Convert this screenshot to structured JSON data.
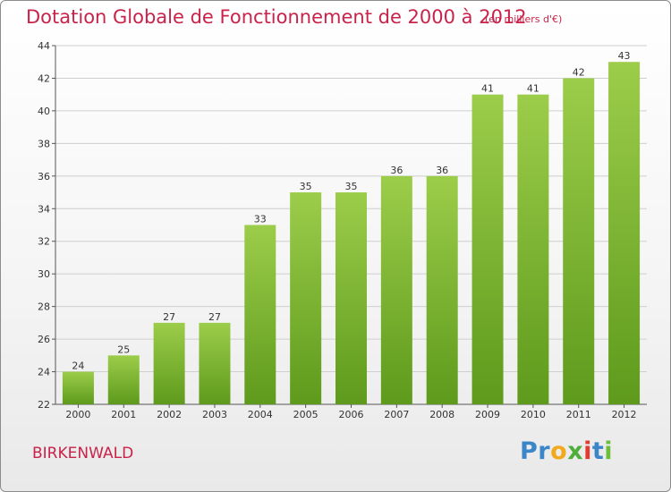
{
  "title": "Dotation Globale de Fonctionnement de 2000 à 2012",
  "subtitle": "(en milliers d'€)",
  "commune": "BIRKENWALD",
  "logo": {
    "text": "Proxiti",
    "letters": [
      "P",
      "r",
      "o",
      "x",
      "i",
      "t",
      "i"
    ],
    "colors": [
      "#3a86c8",
      "#3a86c8",
      "#f2a91c",
      "#4fae3a",
      "#e23b2e",
      "#3a86c8",
      "#6bbf3a"
    ]
  },
  "colors": {
    "title": "#c8234a",
    "bar_light": "#9ccd4a",
    "bar_dark": "#5e9a1c",
    "grid": "#cfcfcf"
  },
  "chart_data": {
    "type": "bar",
    "title": "Dotation Globale de Fonctionnement de 2000 à 2012",
    "subtitle": "(en milliers d'€)",
    "xlabel": "",
    "ylabel": "",
    "categories": [
      "2000",
      "2001",
      "2002",
      "2003",
      "2004",
      "2005",
      "2006",
      "2007",
      "2008",
      "2009",
      "2010",
      "2011",
      "2012"
    ],
    "values": [
      24,
      25,
      27,
      27,
      33,
      35,
      35,
      36,
      36,
      41,
      41,
      42,
      43
    ],
    "ylim": [
      22,
      44
    ],
    "yticks": [
      22,
      24,
      26,
      28,
      30,
      32,
      34,
      36,
      38,
      40,
      42,
      44
    ],
    "grid": true,
    "legend": "none"
  }
}
